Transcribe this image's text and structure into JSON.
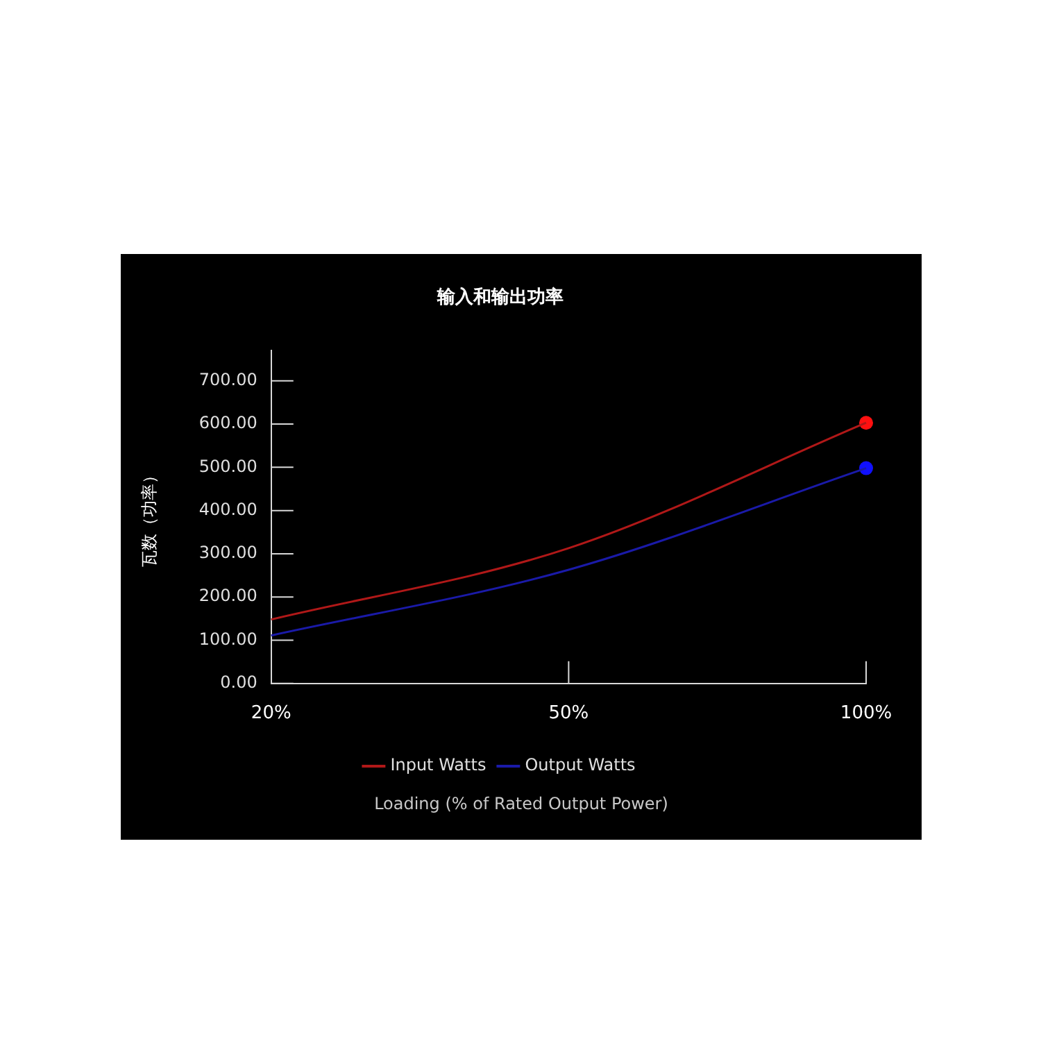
{
  "chart_data": {
    "type": "line",
    "title": "输入和输出功率",
    "xlabel": "Loading (% of Rated Output Power)",
    "ylabel": "瓦数（功率）",
    "categories": [
      "20%",
      "50%",
      "100%"
    ],
    "series": [
      {
        "name": "Input Watts",
        "color": "#b01818",
        "values": [
          148,
          313,
          603
        ]
      },
      {
        "name": "Output Watts",
        "color": "#1a1aa8",
        "values": [
          111,
          263,
          498
        ]
      },
      {
        "type": "scatter",
        "color": "#ff1010",
        "x": [
          "100%"
        ],
        "values": [
          603
        ]
      },
      {
        "type": "scatter",
        "color": "#1010ff",
        "x": [
          "100%"
        ],
        "values": [
          498
        ]
      }
    ],
    "ylim": [
      0,
      770
    ],
    "yticks": [
      {
        "value": 0,
        "label": "0.00"
      },
      {
        "value": 100,
        "label": "100.00"
      },
      {
        "value": 200,
        "label": "200.00"
      },
      {
        "value": 300,
        "label": "300.00"
      },
      {
        "value": 400,
        "label": "400.00"
      },
      {
        "value": 500,
        "label": "500.00"
      },
      {
        "value": 600,
        "label": "600.00"
      },
      {
        "value": 700,
        "label": "700.00"
      }
    ],
    "legend": "bottom",
    "line_style": "solid",
    "grid": false
  }
}
